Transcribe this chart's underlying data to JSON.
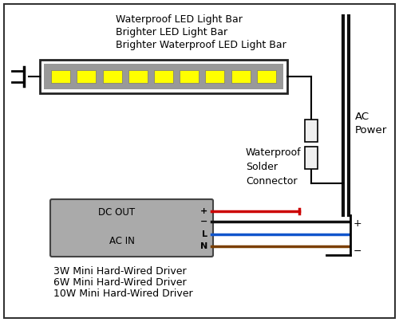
{
  "title_lines": [
    "Waterproof LED Light Bar",
    "Brighter LED Light Bar",
    "Brighter Waterproof LED Light Bar"
  ],
  "driver_labels": [
    "3W Mini Hard-Wired Driver",
    "6W Mini Hard-Wired Driver",
    "10W Mini Hard-Wired Driver"
  ],
  "dc_out_label": "DC OUT",
  "ac_in_label": "AC IN",
  "plus_label": "+",
  "minus_label": "−",
  "L_label": "L",
  "N_label": "N",
  "ac_power_label": "AC\nPower",
  "waterproof_label": "Waterproof\nSolder\nConnector",
  "bg_color": "#ffffff",
  "border_color": "#000000",
  "driver_box_color": "#aaaaaa",
  "led_bar_outer_color": "#222222",
  "led_bar_inner_color": "#999999",
  "led_color": "#ffff00",
  "wire_red": "#cc0000",
  "wire_black": "#111111",
  "wire_blue": "#1155cc",
  "wire_brown": "#7B3F00",
  "ac_wire_color": "#111111",
  "connector_fill": "#f0f0f0",
  "num_leds": 9
}
